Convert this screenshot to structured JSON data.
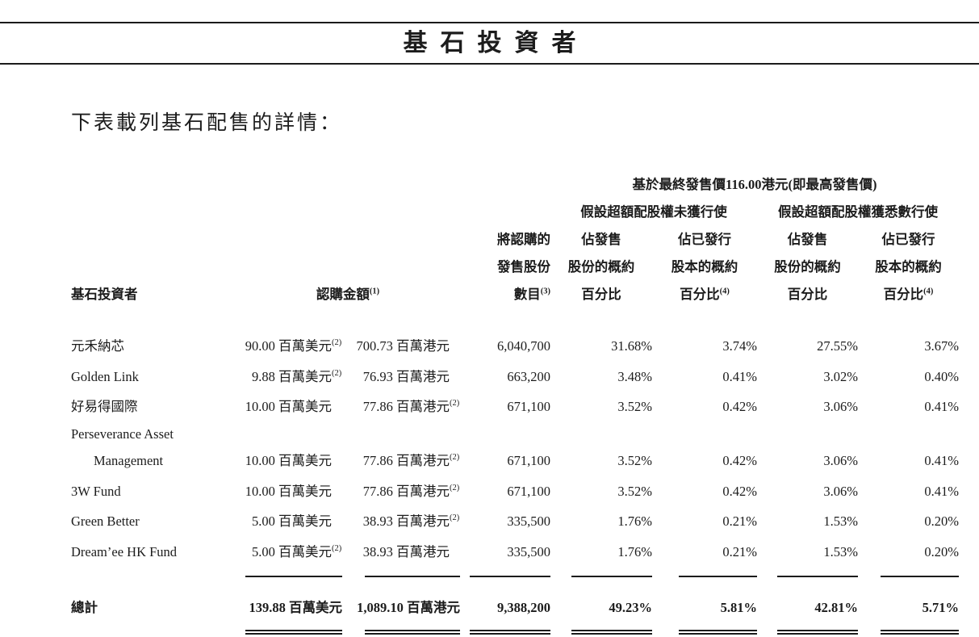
{
  "page": {
    "title": "基石投資者",
    "intro": "下表載列基石配售的詳情："
  },
  "table": {
    "price_header": "基於最終發售價116.00港元(即最高發售價)",
    "scenario_headers": [
      "假設超額配股權未獲行使",
      "假設超額配股權獲悉數行使"
    ],
    "columns": {
      "investor": "基石投資者",
      "subscription": "認購金額",
      "subscription_sup": "(1)",
      "shares_lines": [
        "將認購的",
        "發售股份",
        "數目"
      ],
      "shares_sup": "(3)",
      "pct_offer_lines": [
        "佔發售",
        "股份的概約",
        "百分比"
      ],
      "pct_issued_lines": [
        "佔已發行",
        "股本的概約",
        "百分比"
      ],
      "pct_issued_sup": "(4)"
    },
    "rows": [
      {
        "name_lines": [
          "元禾納芯"
        ],
        "usd": "90.00 百萬美元",
        "usd_sup": "(2)",
        "hkd": "700.73 百萬港元",
        "hkd_sup": "",
        "shares": "6,040,700",
        "pct": [
          "31.68%",
          "3.74%",
          "27.55%",
          "3.67%"
        ]
      },
      {
        "name_lines": [
          "Golden Link"
        ],
        "usd": "9.88 百萬美元",
        "usd_sup": "(2)",
        "hkd": "76.93 百萬港元",
        "hkd_sup": "",
        "shares": "663,200",
        "pct": [
          "3.48%",
          "0.41%",
          "3.02%",
          "0.40%"
        ]
      },
      {
        "name_lines": [
          "好易得國際"
        ],
        "usd": "10.00 百萬美元",
        "usd_sup": "",
        "hkd": "77.86 百萬港元",
        "hkd_sup": "(2)",
        "shares": "671,100",
        "pct": [
          "3.52%",
          "0.42%",
          "3.06%",
          "0.41%"
        ]
      },
      {
        "name_lines": [
          "Perseverance Asset",
          "Management"
        ],
        "usd": "10.00 百萬美元",
        "usd_sup": "",
        "hkd": "77.86 百萬港元",
        "hkd_sup": "(2)",
        "shares": "671,100",
        "pct": [
          "3.52%",
          "0.42%",
          "3.06%",
          "0.41%"
        ]
      },
      {
        "name_lines": [
          "3W Fund"
        ],
        "usd": "10.00 百萬美元",
        "usd_sup": "",
        "hkd": "77.86 百萬港元",
        "hkd_sup": "(2)",
        "shares": "671,100",
        "pct": [
          "3.52%",
          "0.42%",
          "3.06%",
          "0.41%"
        ]
      },
      {
        "name_lines": [
          "Green Better"
        ],
        "usd": "5.00 百萬美元",
        "usd_sup": "",
        "hkd": "38.93 百萬港元",
        "hkd_sup": "(2)",
        "shares": "335,500",
        "pct": [
          "1.76%",
          "0.21%",
          "1.53%",
          "0.20%"
        ]
      },
      {
        "name_lines": [
          "Dream’ee HK Fund"
        ],
        "usd": "5.00 百萬美元",
        "usd_sup": "(2)",
        "hkd": "38.93 百萬港元",
        "hkd_sup": "",
        "shares": "335,500",
        "pct": [
          "1.76%",
          "0.21%",
          "1.53%",
          "0.20%"
        ]
      }
    ],
    "total": {
      "label": "總計",
      "usd": "139.88 百萬美元",
      "hkd": "1,089.10 百萬港元",
      "shares": "9,388,200",
      "pct": [
        "49.23%",
        "5.81%",
        "42.81%",
        "5.71%"
      ]
    }
  }
}
